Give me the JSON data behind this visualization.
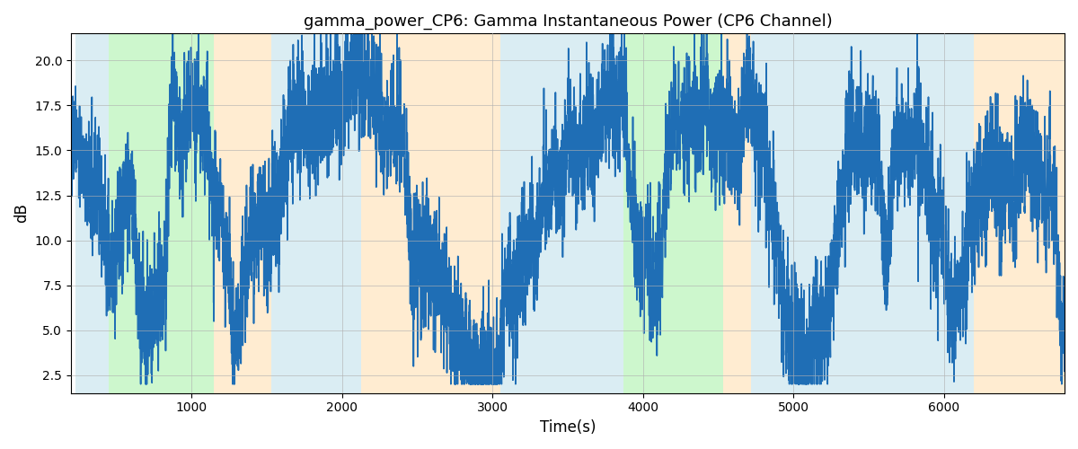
{
  "title": "gamma_power_CP6: Gamma Instantaneous Power (CP6 Channel)",
  "xlabel": "Time(s)",
  "ylabel": "dB",
  "xlim": [
    200,
    6800
  ],
  "ylim": [
    1.5,
    21.5
  ],
  "yticks": [
    2.5,
    5.0,
    7.5,
    10.0,
    12.5,
    15.0,
    17.5,
    20.0
  ],
  "xticks": [
    1000,
    2000,
    3000,
    4000,
    5000,
    6000
  ],
  "line_color": "#1f6eb5",
  "line_width": 1.2,
  "figsize": [
    12,
    5
  ],
  "dpi": 100,
  "bg_color": "#ffffff",
  "shade_regions": [
    {
      "xstart": 230,
      "xend": 450,
      "color": "#add8e6",
      "alpha": 0.45
    },
    {
      "xstart": 450,
      "xend": 1150,
      "color": "#90ee90",
      "alpha": 0.45
    },
    {
      "xstart": 1150,
      "xend": 1530,
      "color": "#ffd59b",
      "alpha": 0.45
    },
    {
      "xstart": 1530,
      "xend": 2130,
      "color": "#add8e6",
      "alpha": 0.45
    },
    {
      "xstart": 2130,
      "xend": 3050,
      "color": "#ffd59b",
      "alpha": 0.45
    },
    {
      "xstart": 3050,
      "xend": 3750,
      "color": "#add8e6",
      "alpha": 0.45
    },
    {
      "xstart": 3750,
      "xend": 3870,
      "color": "#add8e6",
      "alpha": 0.45
    },
    {
      "xstart": 3870,
      "xend": 4530,
      "color": "#90ee90",
      "alpha": 0.45
    },
    {
      "xstart": 4530,
      "xend": 4720,
      "color": "#ffd59b",
      "alpha": 0.45
    },
    {
      "xstart": 4720,
      "xend": 4820,
      "color": "#add8e6",
      "alpha": 0.45
    },
    {
      "xstart": 4820,
      "xend": 5980,
      "color": "#add8e6",
      "alpha": 0.45
    },
    {
      "xstart": 5980,
      "xend": 6200,
      "color": "#add8e6",
      "alpha": 0.45
    },
    {
      "xstart": 6200,
      "xend": 6800,
      "color": "#ffd59b",
      "alpha": 0.45
    }
  ],
  "seed": 42
}
